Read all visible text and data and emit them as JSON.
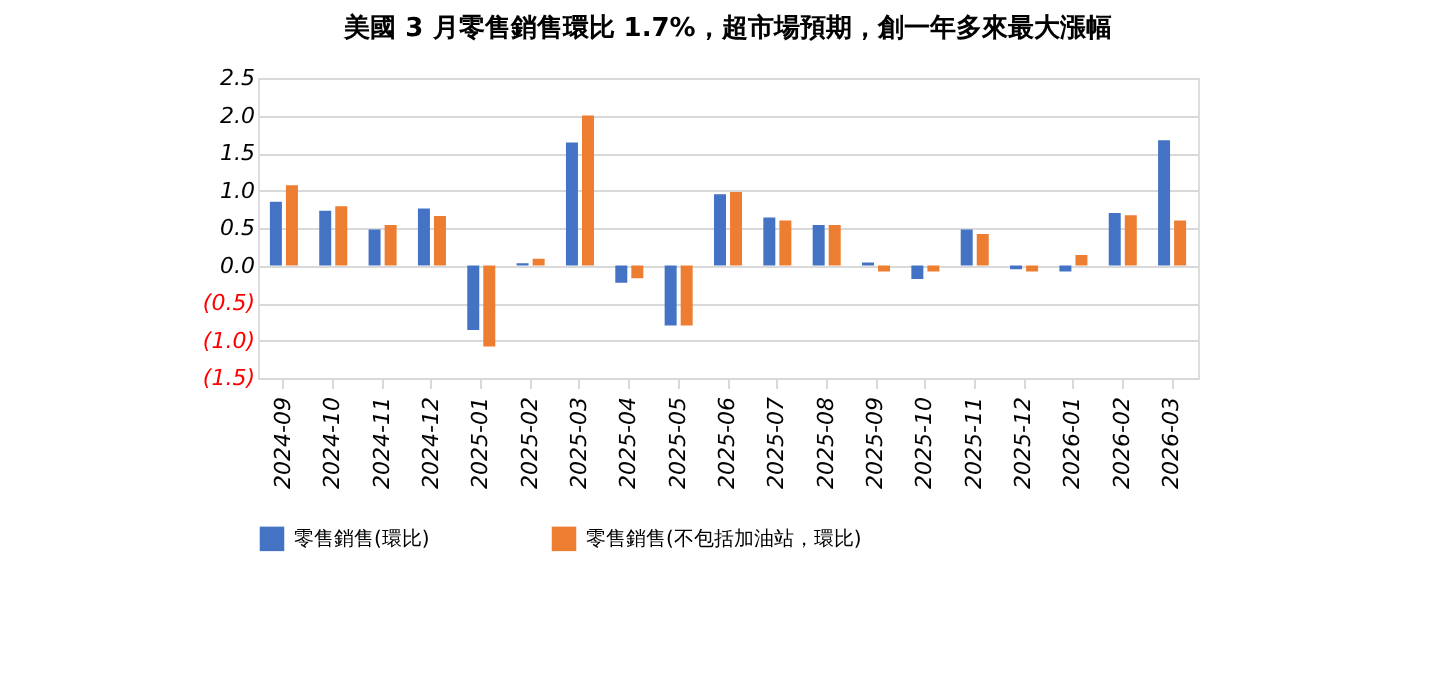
{
  "chart_data": {
    "type": "bar",
    "title": "美國 3 月零售銷售環比 1.7%，超市場預期，創一年多來最大漲幅",
    "categories": [
      "2024-09",
      "2024-10",
      "2024-11",
      "2024-12",
      "2025-01",
      "2025-02",
      "2025-03",
      "2025-04",
      "2025-05",
      "2025-06",
      "2025-07",
      "2025-08",
      "2025-09",
      "2025-10",
      "2025-11",
      "2025-12",
      "2026-01",
      "2026-02",
      "2026-03"
    ],
    "series": [
      {
        "name": "零售銷售(環比)",
        "color": "#4472c4",
        "values": [
          0.85,
          0.73,
          0.48,
          0.76,
          -0.86,
          0.03,
          1.64,
          -0.23,
          -0.8,
          0.95,
          0.64,
          0.54,
          0.04,
          -0.18,
          0.48,
          -0.05,
          -0.08,
          0.7,
          1.67
        ]
      },
      {
        "name": "零售銷售(不包括加油站，環比)",
        "color": "#ed7d31",
        "values": [
          1.07,
          0.79,
          0.54,
          0.66,
          -1.08,
          0.09,
          2.0,
          -0.17,
          -0.8,
          0.98,
          0.6,
          0.54,
          -0.08,
          -0.08,
          0.42,
          -0.08,
          0.14,
          0.67,
          0.6
        ]
      }
    ],
    "ylim": [
      -1.5,
      2.5
    ],
    "yticks": [
      {
        "value": -1.5,
        "label": "(1.5)"
      },
      {
        "value": -1.0,
        "label": "(1.0)"
      },
      {
        "value": -0.5,
        "label": "(0.5)"
      },
      {
        "value": 0,
        "label": "0.0"
      },
      {
        "value": 0.5,
        "label": "0.5"
      },
      {
        "value": 1.0,
        "label": "1.0"
      },
      {
        "value": 1.5,
        "label": "1.5"
      },
      {
        "value": 2.0,
        "label": "2.0"
      },
      {
        "value": 2.5,
        "label": "2.5"
      }
    ],
    "grid": "y",
    "legend": "bottom"
  }
}
